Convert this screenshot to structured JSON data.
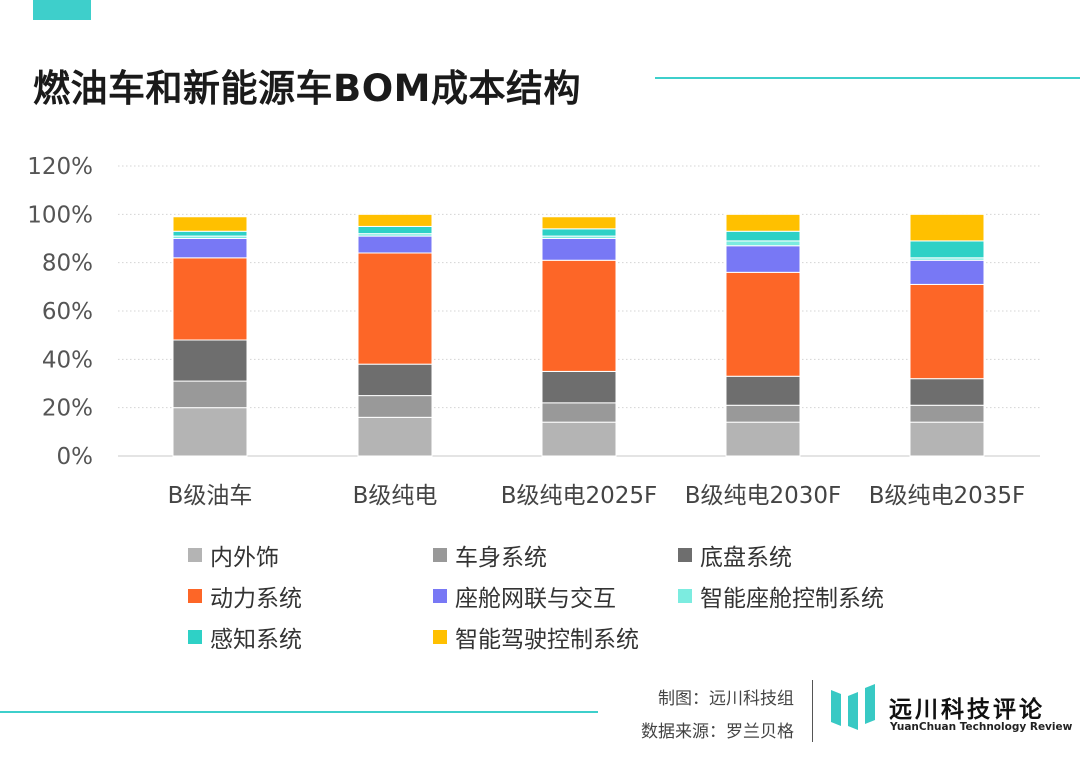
{
  "title": "燃油车和新能源车BOM成本结构",
  "chart_data": {
    "type": "bar",
    "stacked": true,
    "categories": [
      "B级油车",
      "B级纯电",
      "B级纯电2025F",
      "B级纯电2030F",
      "B级纯电2035F"
    ],
    "yticks": [
      "0%",
      "20%",
      "40%",
      "60%",
      "80%",
      "100%",
      "120%"
    ],
    "ylim": [
      0,
      120
    ],
    "grid": true,
    "legend_position": "bottom",
    "series": [
      {
        "name": "内外饰",
        "color": "#b4b4b4",
        "values": [
          20,
          16,
          14,
          14,
          14
        ]
      },
      {
        "name": "车身系统",
        "color": "#999999",
        "values": [
          11,
          9,
          8,
          7,
          7
        ]
      },
      {
        "name": "底盘系统",
        "color": "#6e6e6e",
        "values": [
          17,
          13,
          13,
          12,
          11
        ]
      },
      {
        "name": "动力系统",
        "color": "#fd6627",
        "values": [
          34,
          46,
          46,
          43,
          39
        ]
      },
      {
        "name": "座舱网联与交互",
        "color": "#7878f5",
        "values": [
          8,
          7,
          9,
          11,
          10
        ]
      },
      {
        "name": "智能座舱控制系统",
        "color": "#7cece0",
        "values": [
          1,
          1,
          1,
          2,
          1
        ]
      },
      {
        "name": "感知系统",
        "color": "#2ed1c6",
        "values": [
          2,
          3,
          3,
          4,
          7
        ]
      },
      {
        "name": "智能驾驶控制系统",
        "color": "#ffc000",
        "values": [
          6,
          5,
          5,
          7,
          11
        ]
      }
    ]
  },
  "footer": {
    "credit_line1": "制图：远川科技组",
    "credit_line2": "数据来源：罗兰贝格",
    "brand_cn": "远川科技评论",
    "brand_en": "YuanChuan Technology Review"
  },
  "colors": {
    "accent": "#3ecfcb",
    "logo_teal": "#38c9c4"
  }
}
